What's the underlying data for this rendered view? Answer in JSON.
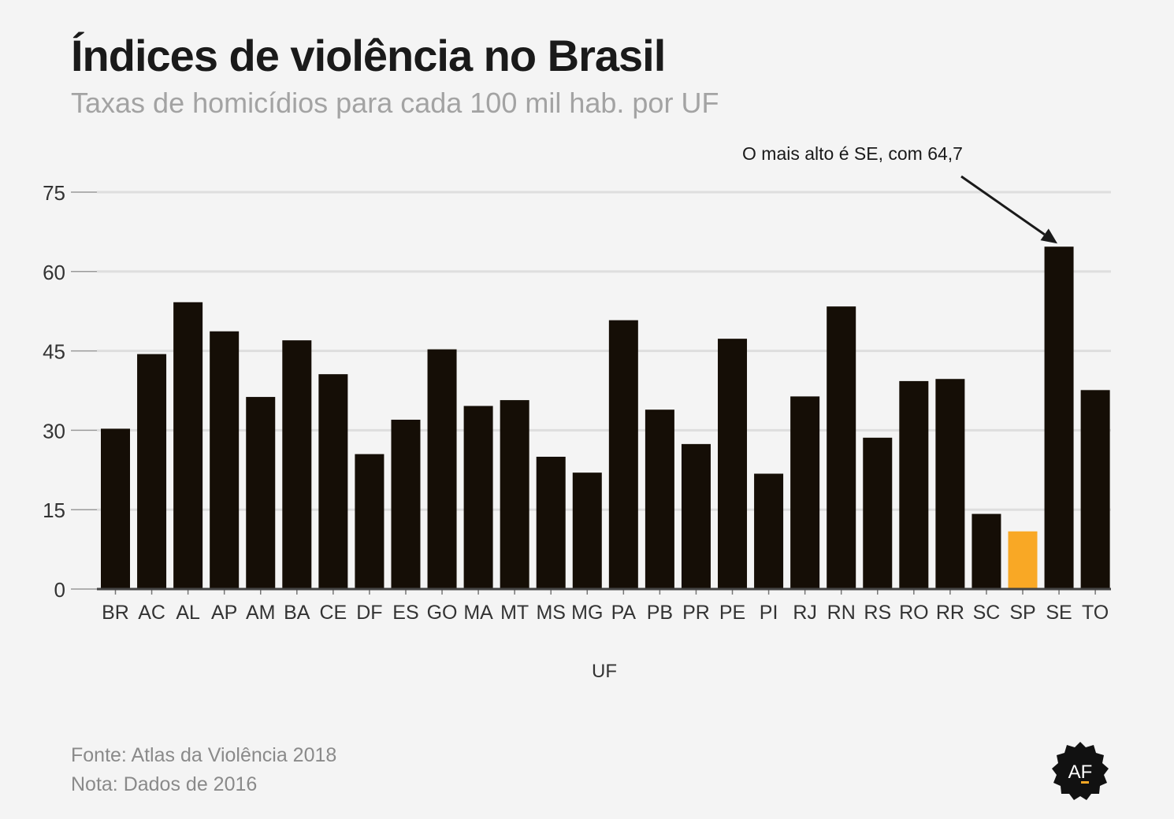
{
  "header": {
    "title": "Índices de violência no Brasil",
    "subtitle": "Taxas de homicídios para cada 100 mil hab. por UF"
  },
  "footer": {
    "source": "Fonte: Atlas da Violência 2018",
    "note": "Nota: Dados de 2016"
  },
  "logo": {
    "text": "AF",
    "icon": "af-badge-logo"
  },
  "chart_data": {
    "type": "bar",
    "title": "Índices de violência no Brasil",
    "subtitle": "Taxas de homicídios para cada 100 mil hab. por UF",
    "xlabel": "UF",
    "ylabel": "",
    "ylim": [
      0,
      75
    ],
    "yticks": [
      0,
      15,
      30,
      45,
      60,
      75
    ],
    "grid": true,
    "categories": [
      "BR",
      "AC",
      "AL",
      "AP",
      "AM",
      "BA",
      "CE",
      "DF",
      "ES",
      "GO",
      "MA",
      "MT",
      "MS",
      "MG",
      "PA",
      "PB",
      "PR",
      "PE",
      "PI",
      "RJ",
      "RN",
      "RS",
      "RO",
      "RR",
      "SC",
      "SP",
      "SE",
      "TO"
    ],
    "values": [
      30.3,
      44.4,
      54.2,
      48.7,
      36.3,
      47.0,
      40.6,
      25.5,
      32.0,
      45.3,
      34.6,
      35.7,
      25.0,
      22.0,
      50.8,
      33.9,
      27.4,
      47.3,
      21.8,
      36.4,
      53.4,
      28.6,
      39.3,
      39.7,
      14.2,
      10.9,
      64.7,
      37.6
    ],
    "colors": {
      "default": "#150e06",
      "highlight": "#f9a825",
      "highlight_category": "SP",
      "grid": "#dedede",
      "axis": "#444444"
    },
    "annotation": {
      "text": "O mais alto é SE, com 64,7",
      "target_category": "SE"
    }
  }
}
